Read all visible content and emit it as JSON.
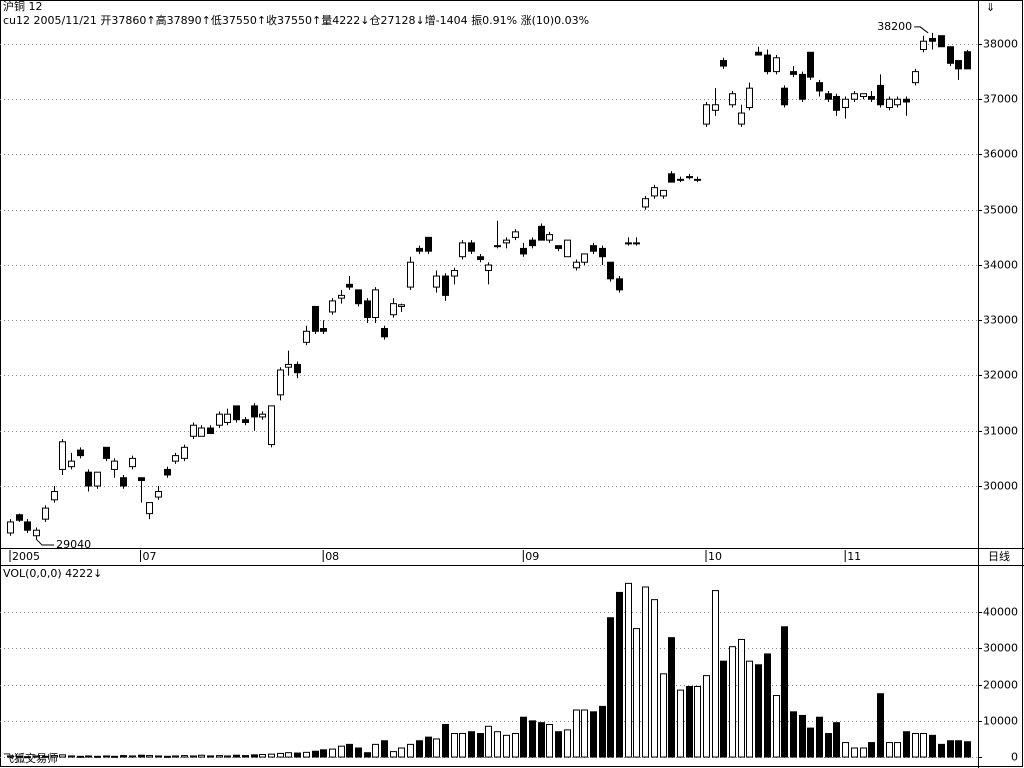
{
  "app_name": "飞狐交易师",
  "chart_data": [
    {
      "type": "candlestick",
      "title": "沪铜  12",
      "subtitle": "cu12 2005/11/21 开37860↑高37890↑低37550↑收37550↑量4222↓仓27128↓增-1404 振0.91% 涨(10)0.03%",
      "period_label": "日线",
      "high_label": 38200,
      "low_label": 29040,
      "categories": [
        "2005",
        null,
        null,
        null,
        null,
        null,
        null,
        null,
        null,
        null,
        null,
        null,
        null,
        null,
        null,
        "07",
        null,
        null,
        null,
        null,
        null,
        null,
        null,
        null,
        null,
        null,
        null,
        null,
        null,
        null,
        null,
        null,
        null,
        null,
        null,
        null,
        "08",
        null,
        null,
        null,
        null,
        null,
        null,
        null,
        null,
        null,
        null,
        null,
        null,
        null,
        null,
        null,
        null,
        null,
        null,
        null,
        null,
        null,
        null,
        "09",
        null,
        null,
        null,
        null,
        null,
        null,
        null,
        null,
        null,
        null,
        null,
        null,
        null,
        null,
        null,
        null,
        null,
        null,
        null,
        null,
        "10",
        null,
        null,
        null,
        null,
        null,
        null,
        null,
        null,
        null,
        null,
        null,
        null,
        null,
        null,
        null,
        "11",
        null,
        null,
        null,
        null,
        null,
        null,
        null,
        null,
        null,
        null,
        null,
        null,
        null,
        null
      ],
      "open": [
        29150,
        29480,
        29350,
        29100,
        29400,
        29750,
        30300,
        30350,
        30650,
        30250,
        30000,
        30700,
        30300,
        30150,
        30350,
        30150,
        29500,
        29800,
        30300,
        30450,
        30500,
        30900,
        30900,
        31050,
        31100,
        31150,
        31450,
        31200,
        31450,
        31250,
        30750,
        31650,
        32150,
        32200,
        32600,
        33250,
        32850,
        33150,
        33400,
        33650,
        33550,
        33350,
        33050,
        32850,
        33100,
        33250,
        33600,
        34300,
        34500,
        33600,
        33800,
        33800,
        34150,
        34400,
        34150,
        33900,
        34350,
        34400,
        34500,
        34300,
        34450,
        34700,
        34450,
        34350,
        34150,
        33950,
        34050,
        34350,
        34300,
        34050,
        33750,
        34400,
        34400,
        35050,
        35250,
        35250,
        35650,
        35550,
        35600,
        35550,
        36550,
        36800,
        37700,
        36900,
        36550,
        36850,
        37850,
        37800,
        37500,
        37200,
        37500,
        37450,
        37850,
        37300,
        37100,
        37050,
        36850,
        37000,
        37050,
        37050,
        37250,
        36850,
        36900,
        37000,
        37300,
        37900,
        38100,
        38150,
        37950,
        37700,
        37860
      ],
      "high": [
        29400,
        29500,
        29400,
        29250,
        29650,
        30000,
        30850,
        30600,
        30700,
        30300,
        30250,
        30700,
        30500,
        30200,
        30550,
        30150,
        29700,
        30000,
        30350,
        30600,
        30750,
        31150,
        31100,
        31100,
        31350,
        31400,
        31450,
        31250,
        31500,
        31350,
        31450,
        32150,
        32450,
        32250,
        32900,
        33250,
        33000,
        33400,
        33550,
        33800,
        33550,
        33400,
        33600,
        32900,
        33400,
        33300,
        34150,
        34350,
        34500,
        33900,
        33850,
        33950,
        34450,
        34450,
        34200,
        34050,
        34800,
        34500,
        34650,
        34400,
        34500,
        34750,
        34600,
        34350,
        34450,
        34100,
        34200,
        34400,
        34350,
        34050,
        33800,
        34500,
        34500,
        35250,
        35450,
        35350,
        35700,
        35600,
        35650,
        35600,
        36950,
        37200,
        37750,
        37150,
        36900,
        37300,
        37950,
        37900,
        37800,
        37250,
        37600,
        37500,
        37850,
        37350,
        37150,
        37100,
        37050,
        37150,
        37100,
        37150,
        37450,
        37050,
        37050,
        37050,
        37550,
        38150,
        38200,
        38150,
        37950,
        37700,
        37890
      ],
      "low": [
        29100,
        29350,
        29150,
        29040,
        29350,
        29700,
        30200,
        30300,
        30500,
        29900,
        29950,
        30450,
        30150,
        29950,
        30300,
        29700,
        29400,
        29750,
        30150,
        30400,
        30450,
        30850,
        30900,
        30950,
        31050,
        31100,
        31150,
        31100,
        31000,
        31200,
        30700,
        31550,
        32000,
        31950,
        32550,
        32750,
        32750,
        33100,
        33300,
        33550,
        33250,
        32950,
        32950,
        32650,
        33050,
        33150,
        33550,
        34200,
        34200,
        33500,
        33350,
        33650,
        34100,
        34200,
        34050,
        33650,
        34300,
        34300,
        34450,
        34150,
        34300,
        34450,
        34400,
        34250,
        34150,
        33900,
        34000,
        34200,
        34000,
        33700,
        33500,
        34350,
        34350,
        35000,
        35200,
        35200,
        35500,
        35500,
        35550,
        35500,
        36500,
        36700,
        37550,
        36850,
        36500,
        36800,
        37800,
        37450,
        37450,
        36850,
        37400,
        36950,
        37350,
        37050,
        36950,
        36700,
        36650,
        36950,
        37000,
        36950,
        36850,
        36800,
        36850,
        36700,
        37250,
        37850,
        37900,
        37950,
        37600,
        37350,
        37550
      ],
      "close": [
        29350,
        29380,
        29200,
        29200,
        29600,
        29900,
        30800,
        30450,
        30550,
        30000,
        30250,
        30500,
        30450,
        30000,
        30500,
        30100,
        29700,
        29900,
        30200,
        30550,
        30700,
        31100,
        31050,
        30950,
        31300,
        31300,
        31200,
        31150,
        31250,
        31300,
        31450,
        32100,
        32200,
        32050,
        32800,
        32800,
        32800,
        33350,
        33450,
        33600,
        33300,
        33050,
        33550,
        32700,
        33300,
        33280,
        34050,
        34250,
        34250,
        33800,
        33450,
        33900,
        34400,
        34250,
        34100,
        34000,
        34350,
        34450,
        34600,
        34200,
        34350,
        34450,
        34550,
        34300,
        34450,
        34050,
        34200,
        34250,
        34150,
        33750,
        33550,
        34400,
        34400,
        35200,
        35400,
        35350,
        35500,
        35550,
        35580,
        35550,
        36900,
        36900,
        37600,
        37100,
        36750,
        37200,
        37800,
        37500,
        37750,
        36900,
        37450,
        37000,
        37400,
        37150,
        37000,
        36800,
        37000,
        37100,
        37100,
        37000,
        36900,
        37000,
        37000,
        36950,
        37500,
        38050,
        38050,
        37950,
        37650,
        37550,
        37550
      ],
      "ylim": [
        28878,
        38796
      ],
      "yticks": [
        30000,
        31000,
        32000,
        33000,
        34000,
        35000,
        36000,
        37000,
        38000
      ],
      "grid": true
    },
    {
      "type": "bar",
      "title": "VOL(0,0,0) 4222↓",
      "values": [
        300,
        200,
        100,
        300,
        200,
        400,
        600,
        300,
        200,
        300,
        200,
        300,
        200,
        400,
        300,
        500,
        400,
        300,
        200,
        300,
        400,
        300,
        500,
        300,
        400,
        300,
        500,
        400,
        600,
        700,
        800,
        1000,
        1200,
        1100,
        1300,
        1600,
        2000,
        2200,
        3000,
        3500,
        2500,
        1200,
        3500,
        4500,
        1500,
        2500,
        3500,
        4500,
        5500,
        5000,
        9000,
        6500,
        6500,
        7000,
        6500,
        8500,
        7000,
        6000,
        6500,
        11000,
        10000,
        9500,
        9000,
        7000,
        7500,
        13000,
        13000,
        12500,
        14000,
        38500,
        45500,
        48000,
        35500,
        47000,
        43500,
        23000,
        33000,
        18500,
        19500,
        19500,
        22500,
        46000,
        26500,
        30500,
        32500,
        26500,
        25500,
        28500,
        17000,
        36000,
        12500,
        11500,
        8000,
        11000,
        6500,
        9500,
        4000,
        2500,
        2500,
        4000,
        17500,
        4000,
        4000,
        7000,
        6500,
        6500,
        6000,
        3500,
        4500,
        4500,
        4222
      ],
      "ylim": [
        -2200,
        52800
      ],
      "yticks": [
        0,
        10000,
        20000,
        30000,
        40000
      ],
      "grid": true
    }
  ]
}
